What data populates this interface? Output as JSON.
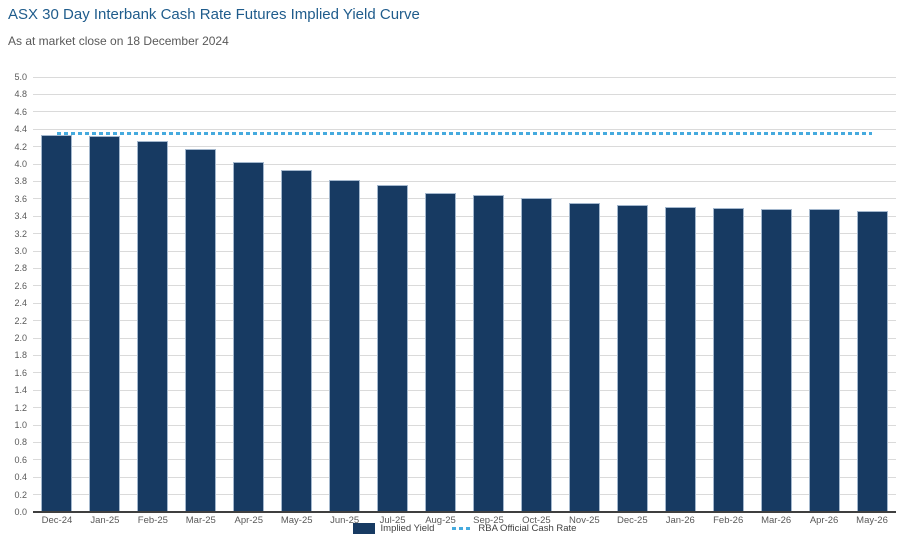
{
  "header": {
    "title": "ASX 30 Day Interbank Cash Rate Futures Implied Yield Curve",
    "subtitle": "As at market close on 18 December 2024"
  },
  "legend": {
    "implied_yield": "Implied Yield",
    "rba_cash_rate": "RBA Official Cash Rate"
  },
  "colors": {
    "title": "#1f5c8c",
    "subtitle": "#595959",
    "bar": "#173a62",
    "bar_border": "#a3b7cd",
    "dashed_line": "#45aade",
    "gridline": "#dadada",
    "baseline": "#3f3f3f",
    "axis_text": "#595959"
  },
  "chart_data": {
    "type": "bar",
    "title": "ASX 30 Day Interbank Cash Rate Futures Implied Yield Curve",
    "subtitle": "As at market close on 18 December 2024",
    "categories": [
      "Dec-24",
      "Jan-25",
      "Feb-25",
      "Mar-25",
      "Apr-25",
      "May-25",
      "Jun-25",
      "Jul-25",
      "Aug-25",
      "Sep-25",
      "Oct-25",
      "Nov-25",
      "Dec-25",
      "Jan-26",
      "Feb-26",
      "Mar-26",
      "Apr-26",
      "May-26"
    ],
    "series": [
      {
        "name": "Implied Yield",
        "type": "bar",
        "values": [
          4.33,
          4.32,
          4.27,
          4.17,
          4.02,
          3.93,
          3.82,
          3.76,
          3.67,
          3.64,
          3.61,
          3.55,
          3.53,
          3.51,
          3.49,
          3.48,
          3.48,
          3.46
        ]
      },
      {
        "name": "RBA Official Cash Rate",
        "type": "dashed-line",
        "value": 4.35
      }
    ],
    "xlabel": "",
    "ylabel": "",
    "ylim": [
      0,
      5.0
    ],
    "ytick_step": 0.2,
    "ytick_format": "one_decimal",
    "grid": true,
    "legend_position": "bottom"
  }
}
